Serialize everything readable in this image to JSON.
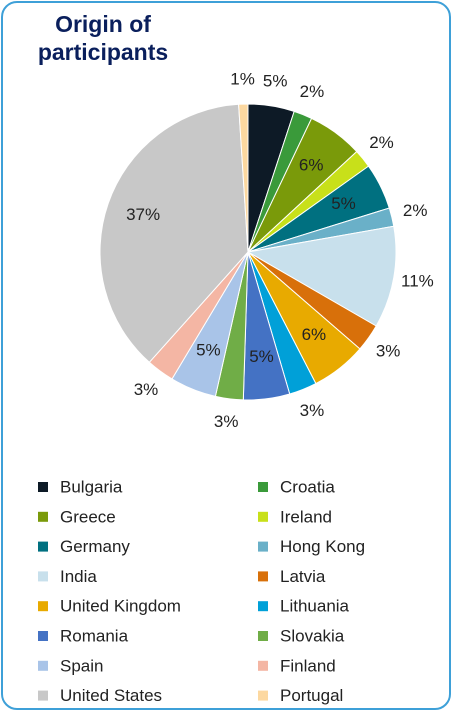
{
  "chart_data": {
    "type": "pie",
    "title": "Origin of participants",
    "categories": [
      "Bulgaria",
      "Croatia",
      "Greece",
      "Ireland",
      "Germany",
      "Hong Kong",
      "India",
      "Latvia",
      "United Kingdom",
      "Lithuania",
      "Romania",
      "Slovakia",
      "Spain",
      "Finland",
      "United States",
      "Portugal"
    ],
    "values": [
      5,
      2,
      6,
      2,
      5,
      2,
      11,
      3,
      6,
      3,
      5,
      3,
      5,
      3,
      37,
      1
    ],
    "value_labels": [
      "5%",
      "2%",
      "6%",
      "2%",
      "5%",
      "2%",
      "11%",
      "3%",
      "6%",
      "3%",
      "5%",
      "3%",
      "5%",
      "3%",
      "37%",
      "1%"
    ],
    "colors": [
      "#0d1a26",
      "#3a9a3a",
      "#7a9a0a",
      "#c8e01a",
      "#007080",
      "#6ab0c8",
      "#c8e0ec",
      "#d8700a",
      "#e8aa00",
      "#00a0d8",
      "#4472c4",
      "#70ad47",
      "#a9c4e8",
      "#f4b6a4",
      "#c8c8c8",
      "#fcd8a0"
    ]
  }
}
